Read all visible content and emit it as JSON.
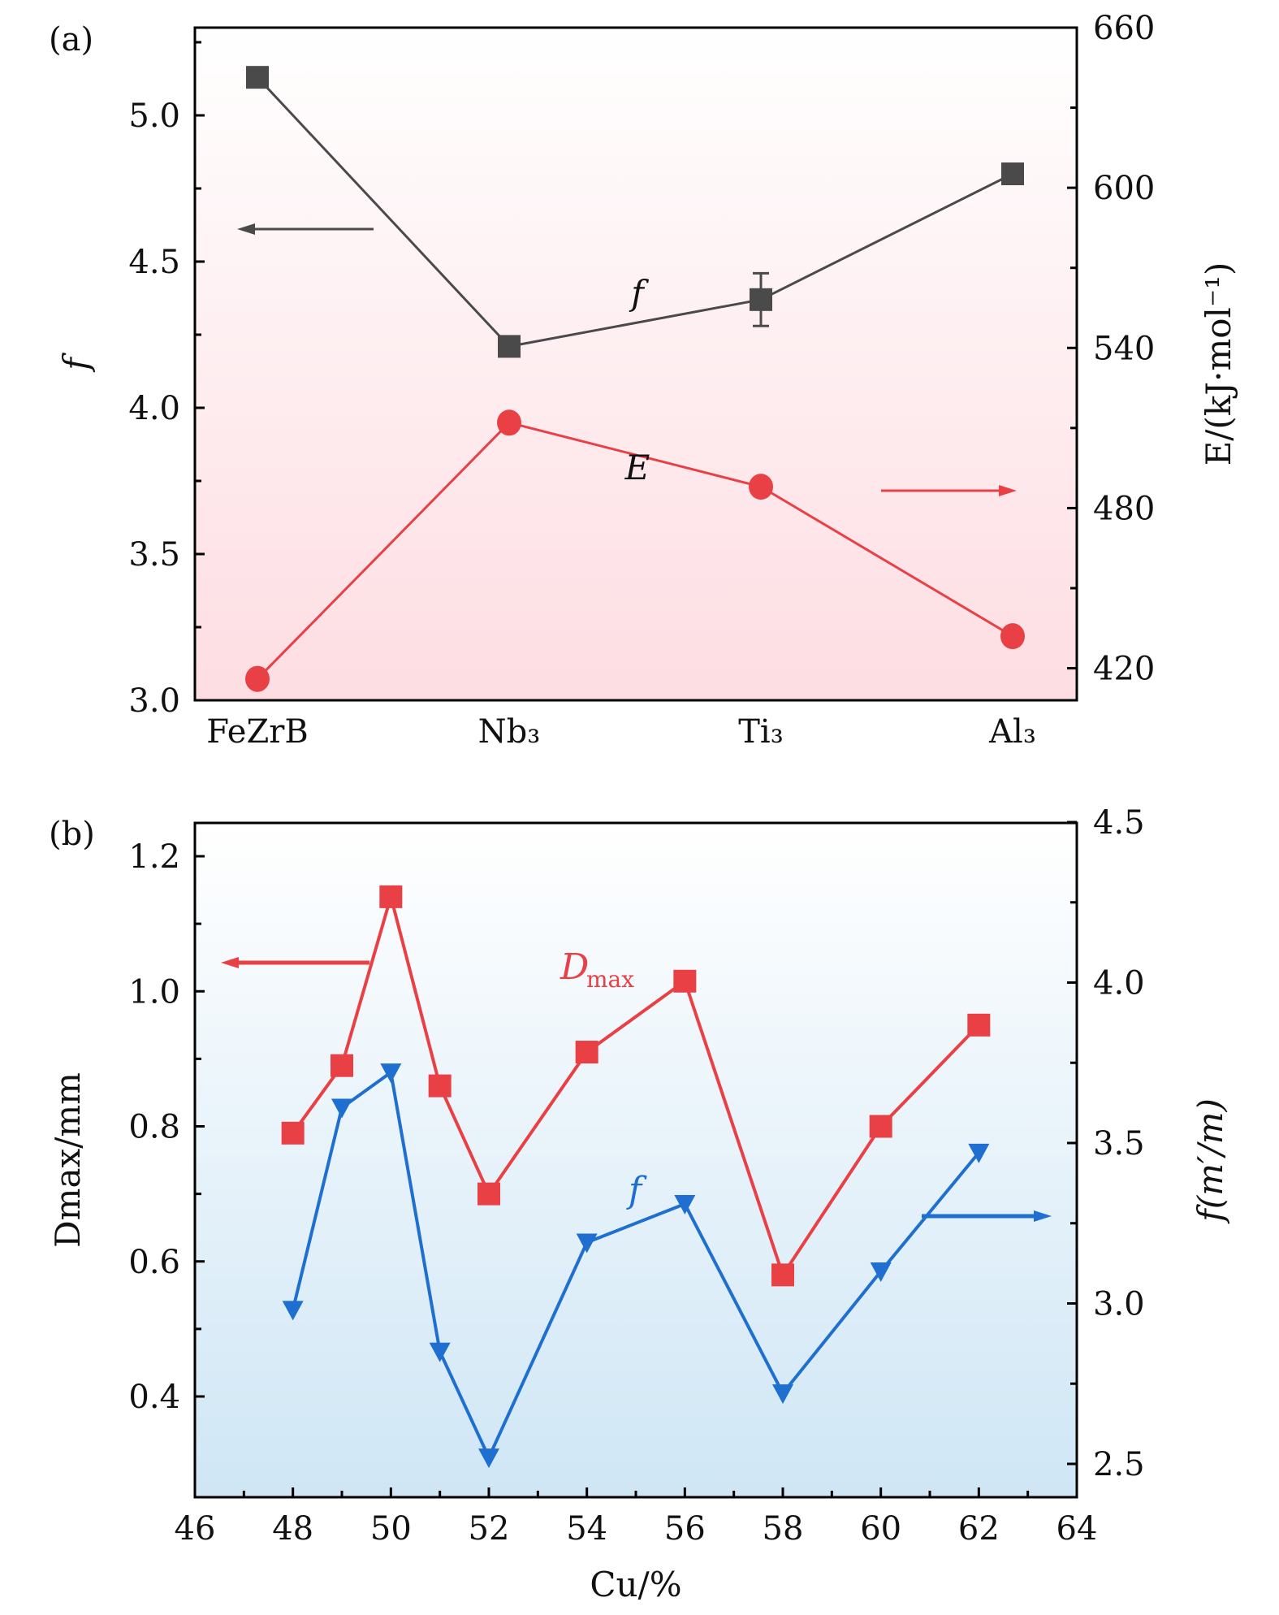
{
  "chart_data": [
    {
      "type": "line",
      "panel_label": "(a)",
      "categories": [
        "FeZrB",
        "Nb₃",
        "Ti₃",
        "Al₃"
      ],
      "series": [
        {
          "name": "f",
          "axis": "left",
          "color": "#4a4a4a",
          "marker": "square",
          "values": [
            5.13,
            4.21,
            4.37,
            4.8
          ],
          "error_bars": [
            null,
            null,
            0.09,
            null
          ]
        },
        {
          "name": "E",
          "axis": "right",
          "color": "#e84045",
          "marker": "circle",
          "values": [
            416,
            512,
            488,
            432
          ]
        }
      ],
      "ylabel_left": "f",
      "ylabel_right": "E/(kJ·mol⁻¹)",
      "ylim_left": [
        3.0,
        5.3
      ],
      "yticks_left": [
        "3.0",
        "3.5",
        "4.0",
        "4.5",
        "5.0"
      ],
      "ylim_right": [
        408,
        660
      ],
      "yticks_right": [
        "420",
        "480",
        "540",
        "600",
        "660"
      ],
      "annotations": [
        "f",
        "E"
      ],
      "background": "gradient white to pink"
    },
    {
      "type": "line",
      "panel_label": "(b)",
      "x": [
        48,
        49,
        50,
        51,
        52,
        54,
        56,
        58,
        60,
        62
      ],
      "series": [
        {
          "name": "Dmax",
          "axis": "left",
          "color": "#e84045",
          "marker": "square",
          "values": [
            0.79,
            0.89,
            1.14,
            0.86,
            0.7,
            0.91,
            1.015,
            0.58,
            0.8,
            0.95
          ]
        },
        {
          "name": "f",
          "axis": "right",
          "color": "#1f6fd0",
          "marker": "triangle-down",
          "values": [
            2.98,
            3.61,
            3.72,
            2.85,
            2.52,
            3.19,
            3.31,
            2.72,
            3.1,
            3.47
          ]
        }
      ],
      "xlabel": "Cu/%",
      "xlim": [
        46,
        64
      ],
      "xticks": [
        "46",
        "48",
        "50",
        "52",
        "54",
        "56",
        "58",
        "60",
        "62",
        "64"
      ],
      "ylabel_left": "Dmax/mm",
      "ylabel_right": "f(m′/m)",
      "ylim_left": [
        0.25,
        1.25
      ],
      "yticks_left": [
        "0.4",
        "0.6",
        "0.8",
        "1.0",
        "1.2"
      ],
      "ylim_right": [
        2.4,
        4.5
      ],
      "yticks_right": [
        "2.5",
        "3.0",
        "3.5",
        "4.0",
        "4.5"
      ],
      "annotations": [
        "Dmax",
        "f"
      ],
      "background": "gradient white to light blue"
    }
  ]
}
